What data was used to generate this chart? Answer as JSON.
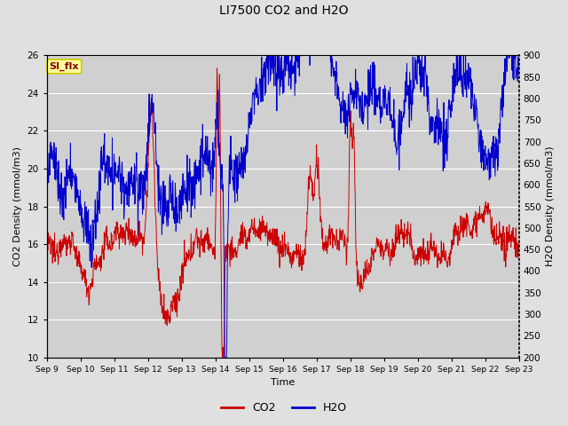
{
  "title": "LI7500 CO2 and H2O",
  "xlabel": "Time",
  "ylabel_left": "CO2 Density (mmol/m3)",
  "ylabel_right": "H2O Density (mmol/m3)",
  "ylim_left": [
    10,
    26
  ],
  "ylim_right": [
    200,
    900
  ],
  "yticks_left": [
    10,
    12,
    14,
    16,
    18,
    20,
    22,
    24,
    26
  ],
  "yticks_right": [
    200,
    250,
    300,
    350,
    400,
    450,
    500,
    550,
    600,
    650,
    700,
    750,
    800,
    850,
    900
  ],
  "xtick_labels": [
    "Sep 9",
    "Sep 10",
    "Sep 11",
    "Sep 12",
    "Sep 13",
    "Sep 14",
    "Sep 15",
    "Sep 16",
    "Sep 17",
    "Sep 18",
    "Sep 19",
    "Sep 20",
    "Sep 21",
    "Sep 22",
    "Sep 23"
  ],
  "legend_labels": [
    "CO2",
    "H2O"
  ],
  "co2_color": "#cc0000",
  "h2o_color": "#0000cc",
  "background_color": "#e0e0e0",
  "plot_bg_color": "#d0d0d0",
  "annotation_text": "SI_flx",
  "annotation_bg": "#ffff99",
  "annotation_border": "#cccc00",
  "annotation_text_color": "#8b0000"
}
